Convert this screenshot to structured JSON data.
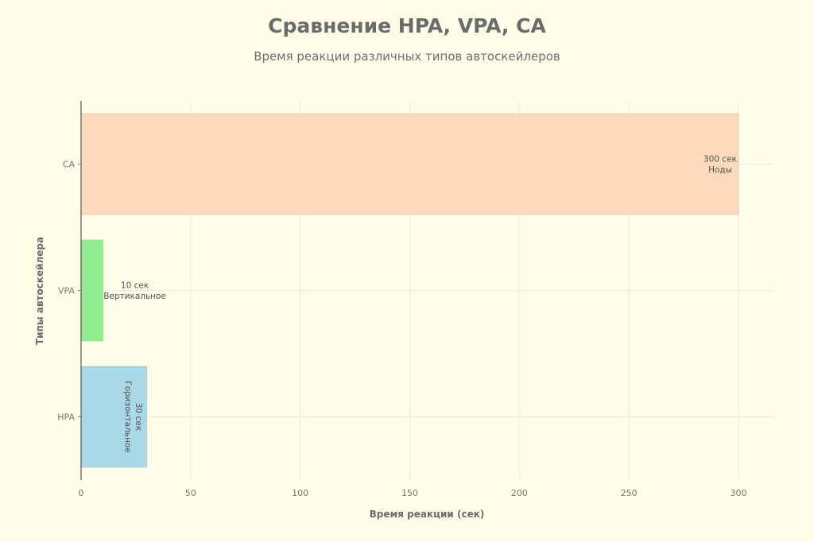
{
  "chart_data": {
    "type": "bar",
    "orientation": "horizontal",
    "title": "Сравнение HPA, VPA, CA",
    "subtitle": "Время реакции различных типов автоскейлеров",
    "xlabel": "Время реакции (сек)",
    "ylabel": "Типы автоскейлера",
    "categories": [
      "HPA",
      "VPA",
      "CA"
    ],
    "values": [
      30,
      10,
      300
    ],
    "bar_labels": [
      [
        "30 сек",
        "Горизонтальное"
      ],
      [
        "10 сек",
        "Вертикальное"
      ],
      [
        "300 сек",
        "Ноды"
      ]
    ],
    "bar_label_rotated": [
      true,
      false,
      false
    ],
    "colors": [
      "#a9d8e6",
      "#90ee90",
      "#fddabb"
    ],
    "xlim": [
      0,
      316
    ],
    "xticks": [
      0,
      50,
      100,
      150,
      200,
      250,
      300
    ],
    "grid": true,
    "legend": false
  }
}
